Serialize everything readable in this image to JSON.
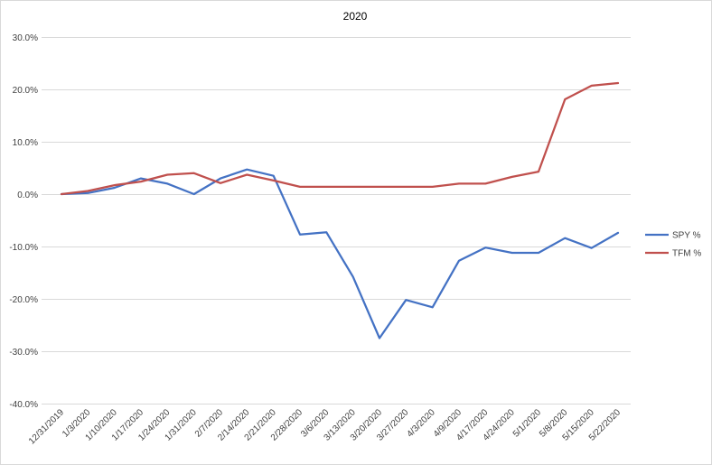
{
  "chart_data": {
    "type": "line",
    "title": "2020",
    "xlabel": "",
    "ylabel": "",
    "ylim": [
      -40,
      30
    ],
    "y_ticks": [
      30,
      20,
      10,
      0,
      -10,
      -20,
      -30,
      -40
    ],
    "y_tick_labels": [
      "30.0%",
      "20.0%",
      "10.0%",
      "0.0%",
      "-10.0%",
      "-20.0%",
      "-30.0%",
      "-40.0%"
    ],
    "grid": "horizontal",
    "legend_position": "right",
    "categories": [
      "12/31/2019",
      "1/3/2020",
      "1/10/2020",
      "1/17/2020",
      "1/24/2020",
      "1/31/2020",
      "2/7/2020",
      "2/14/2020",
      "2/21/2020",
      "2/28/2020",
      "3/6/2020",
      "3/13/2020",
      "3/20/2020",
      "3/27/2020",
      "4/3/2020",
      "4/9/2020",
      "4/17/2020",
      "4/24/2020",
      "5/1/2020",
      "5/8/2020",
      "5/15/2020",
      "5/22/2020"
    ],
    "series": [
      {
        "name": "SPY %",
        "color": "#4472c4",
        "values": [
          0.0,
          0.2,
          1.2,
          3.0,
          2.0,
          0.0,
          3.0,
          4.7,
          3.5,
          -7.7,
          -7.3,
          -15.8,
          -27.5,
          -20.2,
          -21.6,
          -12.7,
          -10.2,
          -11.2,
          -11.2,
          -8.4,
          -10.3,
          -7.4
        ]
      },
      {
        "name": "TFM %",
        "color": "#c0504d",
        "values": [
          0.0,
          0.6,
          1.7,
          2.4,
          3.7,
          4.0,
          2.1,
          3.7,
          2.6,
          1.4,
          1.4,
          1.4,
          1.4,
          1.4,
          1.4,
          2.0,
          2.0,
          3.3,
          4.3,
          18.1,
          20.7,
          21.2
        ]
      }
    ]
  }
}
